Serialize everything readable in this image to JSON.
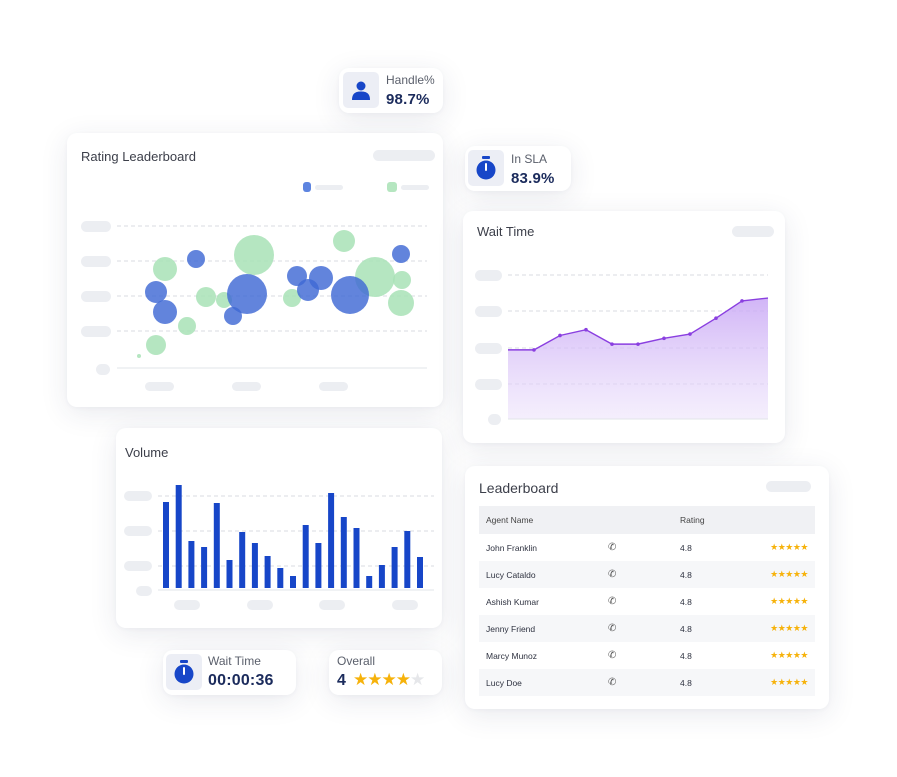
{
  "handle": {
    "label": "Handle%",
    "value": "98.7%",
    "icon": "user-icon"
  },
  "in_sla": {
    "label": "In SLA",
    "value": "83.9%",
    "icon": "timer-icon"
  },
  "rating_leaderboard": {
    "title": "Rating Leaderboard",
    "colors": {
      "series_a": "#4a72d6",
      "series_b": "#b5e6c0"
    }
  },
  "wait_time_chart": {
    "title": "Wait Time",
    "color": "#8a3fe0",
    "values": [
      48,
      48,
      58,
      62,
      52,
      52,
      56,
      59,
      70,
      82,
      84
    ]
  },
  "volume": {
    "title": "Volume",
    "color": "#1746c8",
    "values": [
      86,
      103,
      47,
      41,
      85,
      28,
      56,
      45,
      32,
      20,
      12,
      63,
      45,
      95,
      71,
      60,
      12,
      23,
      41,
      57,
      31
    ]
  },
  "leaderboard": {
    "title": "Leaderboard",
    "headers": {
      "agent": "Agent Name",
      "rating": "Rating"
    },
    "rows": [
      {
        "name": "John Franklin",
        "rating": "4.8",
        "stars": "★★★★★"
      },
      {
        "name": "Lucy Cataldo",
        "rating": "4.8",
        "stars": "★★★★★"
      },
      {
        "name": "Ashish Kumar",
        "rating": "4.8",
        "stars": "★★★★★"
      },
      {
        "name": "Jenny Friend",
        "rating": "4.8",
        "stars": "★★★★★"
      },
      {
        "name": "Marcy Munoz",
        "rating": "4.8",
        "stars": "★★★★★"
      },
      {
        "name": "Lucy Doe",
        "rating": "4.8",
        "stars": "★★★★★"
      }
    ]
  },
  "wait_time_stat": {
    "label": "Wait Time",
    "value": "00:00:36",
    "icon": "timer-icon"
  },
  "overall": {
    "label": "Overall",
    "value": "4",
    "rating": 4,
    "max": 5
  }
}
